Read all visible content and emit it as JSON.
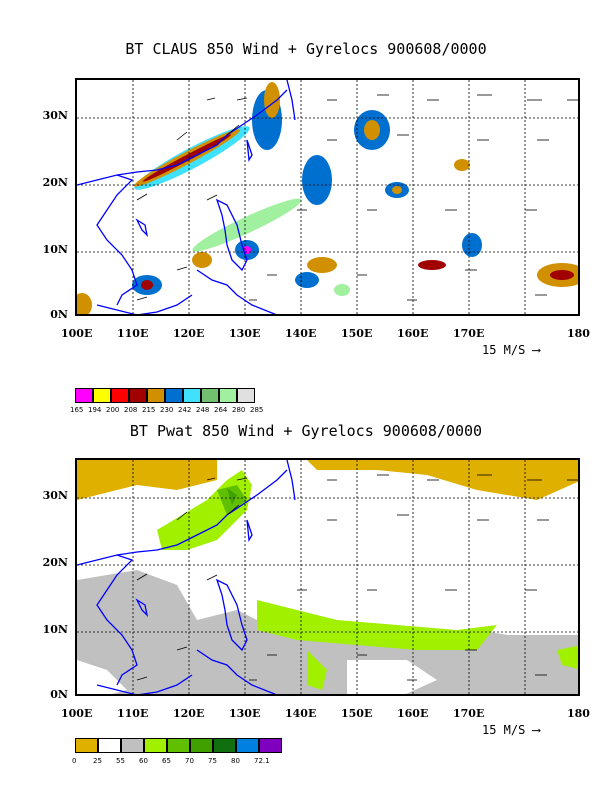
{
  "top_panel": {
    "title": "BT CLAUS 850 Wind + Gyrelocs 900608/0000",
    "x_ticks": [
      "100E",
      "110E",
      "120E",
      "130E",
      "140E",
      "150E",
      "160E",
      "170E",
      "180"
    ],
    "y_ticks": [
      "30N",
      "20N",
      "10N",
      "0N"
    ],
    "scale_label": "15 M/S",
    "colorbar": {
      "colors": [
        "#ff00ff",
        "#ffff00",
        "#ff0000",
        "#a00000",
        "#d09000",
        "#0070d0",
        "#40e0ff",
        "#70c070",
        "#a0f0a0",
        "#e0e0e0"
      ],
      "labels": [
        "165",
        "194",
        "200",
        "208",
        "215",
        "230",
        "242",
        "248",
        "264",
        "280",
        "285"
      ]
    }
  },
  "bottom_panel": {
    "title": "BT Pwat 850 Wind + Gyrelocs 900608/0000",
    "x_ticks": [
      "100E",
      "110E",
      "120E",
      "130E",
      "140E",
      "150E",
      "160E",
      "170E",
      "180"
    ],
    "y_ticks": [
      "30N",
      "20N",
      "10N",
      "0N"
    ],
    "scale_label": "15 M/S",
    "colorbar": {
      "colors": [
        "#e0b000",
        "#ffffff",
        "#c0c0c0",
        "#a0f000",
        "#60c000",
        "#40a000",
        "#107010",
        "#0080e0",
        "#8000c0"
      ],
      "labels": [
        "0",
        "25",
        "55",
        "60",
        "65",
        "70",
        "75",
        "80",
        "72.1"
      ]
    }
  }
}
